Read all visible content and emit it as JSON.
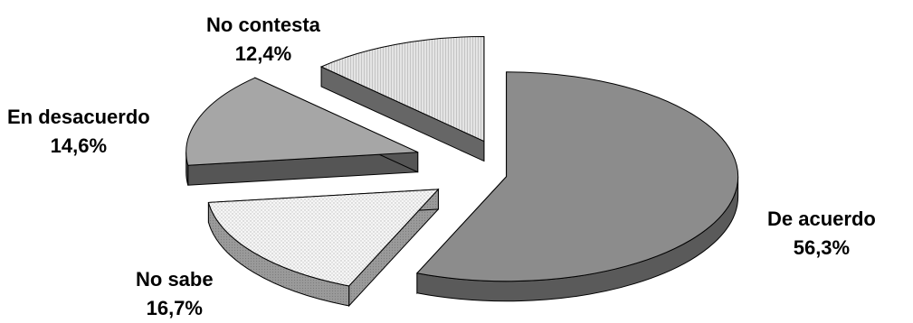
{
  "chart_data": {
    "type": "pie",
    "title": "",
    "unit": "%",
    "style": "3d-exploded",
    "slices": [
      {
        "name": "De acuerdo",
        "value": 56.3,
        "label": "56,3%",
        "top_fill": "#8c8c8c",
        "side_fill": "#5a5a5a",
        "pattern": "solid"
      },
      {
        "name": "No sabe",
        "value": 16.7,
        "label": "16,7%",
        "top_fill": "#f3f3f3",
        "side_fill": "#9a9a9a",
        "pattern": "dots"
      },
      {
        "name": "En desacuerdo",
        "value": 14.6,
        "label": "14,6%",
        "top_fill": "#a6a6a6",
        "side_fill": "#555555",
        "pattern": "solid"
      },
      {
        "name": "No contesta",
        "value": 12.4,
        "label": "12,4%",
        "top_fill": "#dcdcdc",
        "side_fill": "#666666",
        "pattern": "lines"
      }
    ]
  }
}
